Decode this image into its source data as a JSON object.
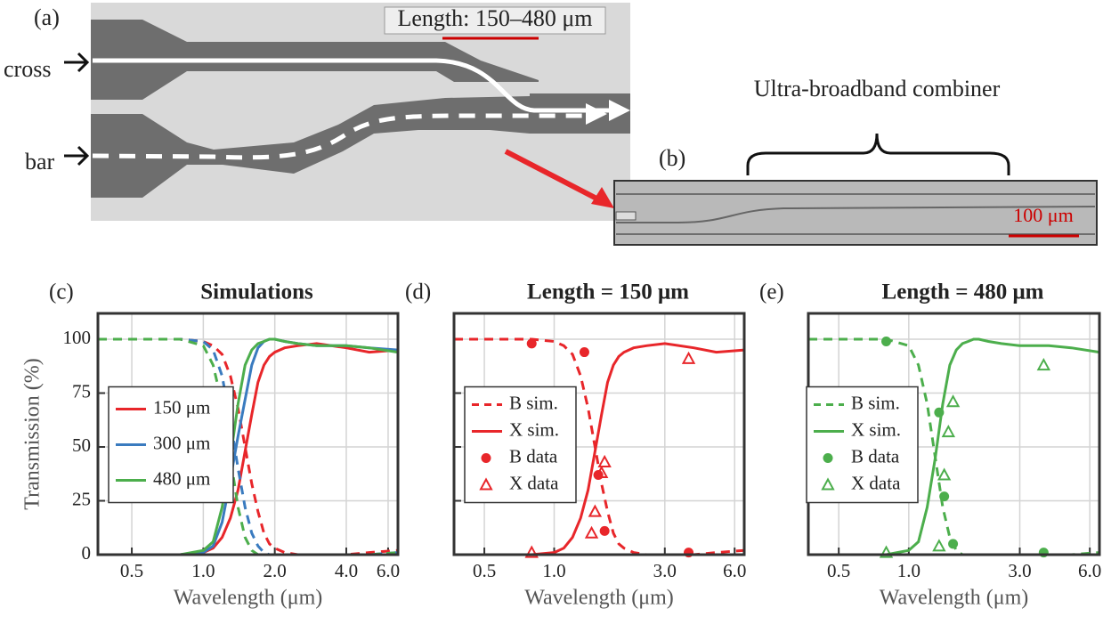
{
  "panel_a": {
    "label": "(a)",
    "input_cross": "cross",
    "input_bar": "bar",
    "length_label": "Length: 150–480 μm"
  },
  "panel_b": {
    "label": "(b)",
    "annotation": "Ultra-broadband combiner",
    "scale_bar": "100 μm"
  },
  "chart_data": [
    {
      "type": "line",
      "label": "(c)",
      "title": "Simulations",
      "xlabel": "Wavelength (μm)",
      "ylabel": "Transmission (%)",
      "xscale": "log",
      "xlim": [
        0.36,
        6.6
      ],
      "xticks": [
        0.5,
        {
          "value": 1,
          "label": "1.0"
        },
        {
          "value": 2,
          "label": "2.0"
        },
        {
          "value": 4,
          "label": "4.0"
        },
        {
          "value": 6,
          "label": "6.0"
        }
      ],
      "ylim": [
        0,
        112
      ],
      "yticks": [
        0,
        25,
        50,
        75,
        100
      ],
      "grid": true,
      "legend": "center left",
      "x": [
        0.36,
        0.8,
        1.0,
        1.1,
        1.2,
        1.3,
        1.4,
        1.5,
        1.6,
        1.7,
        1.8,
        1.9,
        2.0,
        2.2,
        2.5,
        3.0,
        4.0,
        5.0,
        6.6
      ],
      "series": [
        {
          "name": "150 μm",
          "color": "#e8262a",
          "values": [
            0,
            0,
            1,
            3,
            8,
            17,
            30,
            48,
            65,
            80,
            88,
            92,
            94,
            96,
            97,
            98,
            96,
            94,
            95
          ],
          "bar_values": [
            100,
            100,
            99,
            97,
            93,
            83,
            68,
            50,
            33,
            20,
            10,
            5,
            3,
            1,
            0,
            0,
            0,
            1,
            2
          ]
        },
        {
          "name": "300 μm",
          "color": "#3a7bbf",
          "values": [
            0,
            0,
            1,
            4,
            15,
            35,
            55,
            72,
            88,
            96,
            99,
            100,
            100,
            99,
            98,
            97,
            97,
            96,
            95
          ],
          "bar_values": [
            100,
            100,
            99,
            95,
            83,
            62,
            40,
            22,
            10,
            4,
            1,
            0,
            0,
            0,
            0,
            0,
            0,
            0,
            1
          ]
        },
        {
          "name": "480 μm",
          "color": "#4cae4c",
          "values": [
            0,
            0,
            2,
            6,
            22,
            45,
            70,
            88,
            95,
            98,
            99,
            100,
            100,
            99,
            98,
            97,
            97,
            96,
            94
          ],
          "bar_values": [
            100,
            100,
            97,
            88,
            70,
            45,
            22,
            8,
            2,
            0,
            0,
            0,
            0,
            0,
            0,
            0,
            0,
            0,
            1
          ]
        }
      ]
    },
    {
      "type": "line",
      "label": "(d)",
      "title": "Length = 150 μm",
      "xlabel": "Wavelength (μm)",
      "xscale": "log",
      "xlim": [
        0.37,
        6.6
      ],
      "xticks": [
        0.5,
        {
          "value": 1,
          "label": "1.0"
        },
        {
          "value": 3,
          "label": "3.0"
        },
        {
          "value": 6,
          "label": "6.0"
        }
      ],
      "ylim": [
        0,
        112
      ],
      "yticks": [
        0,
        25,
        50,
        75,
        100
      ],
      "ytick_labels": false,
      "grid": true,
      "legend": "center left",
      "series": [
        {
          "name": "B sim.",
          "color": "#e8262a",
          "style": "dashed",
          "x": [
            0.37,
            0.8,
            1.0,
            1.1,
            1.2,
            1.3,
            1.4,
            1.5,
            1.6,
            1.7,
            1.8,
            1.9,
            2.0,
            2.2,
            2.5,
            3.0,
            4.0,
            5.0,
            6.6
          ],
          "values": [
            100,
            100,
            99,
            97,
            93,
            83,
            68,
            50,
            33,
            20,
            10,
            5,
            3,
            1,
            0,
            0,
            0,
            1,
            2
          ]
        },
        {
          "name": "X sim.",
          "color": "#e8262a",
          "style": "solid",
          "x": [
            0.37,
            0.8,
            1.0,
            1.1,
            1.2,
            1.3,
            1.4,
            1.5,
            1.6,
            1.7,
            1.8,
            1.9,
            2.0,
            2.2,
            2.5,
            3.0,
            4.0,
            5.0,
            6.6
          ],
          "values": [
            0,
            0,
            1,
            3,
            8,
            17,
            30,
            48,
            65,
            80,
            88,
            92,
            94,
            96,
            97,
            98,
            96,
            94,
            95
          ]
        },
        {
          "name": "B data",
          "color": "#e8262a",
          "style": "circle",
          "x": [
            0.8,
            1.35,
            1.55,
            1.65,
            3.8
          ],
          "values": [
            98,
            94,
            37,
            11,
            1
          ]
        },
        {
          "name": "X data",
          "color": "#e8262a",
          "style": "triangle",
          "x": [
            0.8,
            1.45,
            1.5,
            1.6,
            1.65,
            3.8
          ],
          "values": [
            1,
            10,
            20,
            38,
            43,
            91
          ]
        }
      ]
    },
    {
      "type": "line",
      "label": "(e)",
      "title": "Length = 480 μm",
      "xlabel": "Wavelength (μm)",
      "xscale": "log",
      "xlim": [
        0.37,
        6.6
      ],
      "xticks": [
        0.5,
        {
          "value": 1,
          "label": "1.0"
        },
        {
          "value": 3,
          "label": "3.0"
        },
        {
          "value": 6,
          "label": "6.0"
        }
      ],
      "ylim": [
        0,
        112
      ],
      "yticks": [
        0,
        25,
        50,
        75,
        100
      ],
      "ytick_labels": false,
      "grid": true,
      "legend": "center left",
      "series": [
        {
          "name": "B sim.",
          "color": "#4cae4c",
          "style": "dashed",
          "x": [
            0.37,
            0.8,
            1.0,
            1.1,
            1.2,
            1.3,
            1.4,
            1.5,
            1.6,
            1.7,
            1.8,
            1.9,
            2.0,
            2.2,
            2.5,
            3.0,
            4.0,
            5.0,
            6.6
          ],
          "values": [
            100,
            100,
            97,
            88,
            70,
            45,
            22,
            8,
            2,
            0,
            0,
            0,
            0,
            0,
            0,
            0,
            0,
            0,
            1
          ]
        },
        {
          "name": "X sim.",
          "color": "#4cae4c",
          "style": "solid",
          "x": [
            0.37,
            0.8,
            1.0,
            1.1,
            1.2,
            1.3,
            1.4,
            1.5,
            1.6,
            1.7,
            1.8,
            1.9,
            2.0,
            2.2,
            2.5,
            3.0,
            4.0,
            5.0,
            6.6
          ],
          "values": [
            0,
            0,
            2,
            6,
            22,
            45,
            70,
            88,
            95,
            98,
            99,
            100,
            100,
            99,
            98,
            97,
            97,
            96,
            94
          ]
        },
        {
          "name": "B data",
          "color": "#4cae4c",
          "style": "circle",
          "x": [
            0.8,
            1.35,
            1.42,
            1.55,
            3.8
          ],
          "values": [
            99,
            66,
            27,
            5,
            1
          ]
        },
        {
          "name": "X data",
          "color": "#4cae4c",
          "style": "triangle",
          "x": [
            0.8,
            1.35,
            1.42,
            1.48,
            1.55,
            3.8
          ],
          "values": [
            1,
            4,
            37,
            57,
            71,
            88
          ]
        }
      ]
    }
  ]
}
